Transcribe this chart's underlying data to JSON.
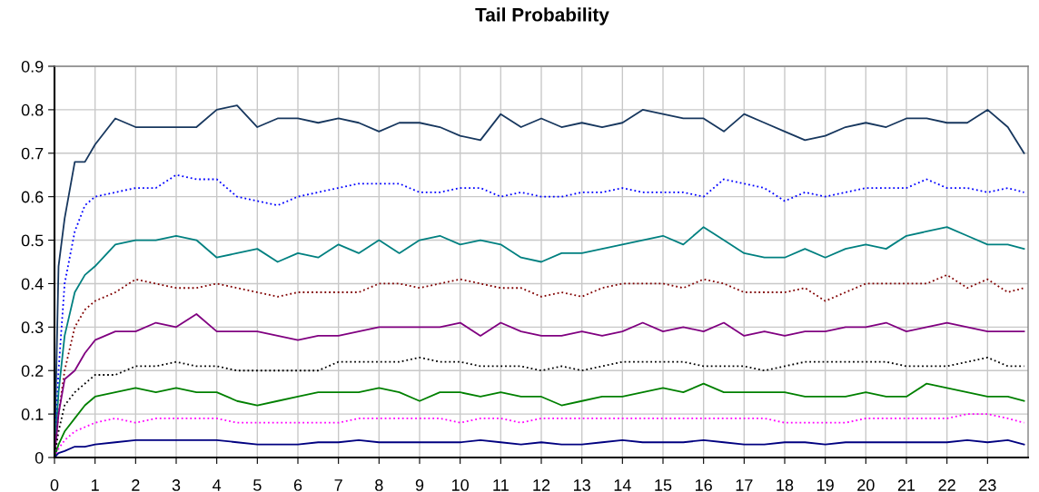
{
  "chart_data": {
    "type": "line",
    "title": "Tail Probability",
    "x": [
      0,
      0.1,
      0.25,
      0.5,
      0.75,
      1,
      1.5,
      2,
      2.5,
      3,
      3.5,
      4,
      4.5,
      5,
      5.5,
      6,
      6.5,
      7,
      7.5,
      8,
      8.5,
      9,
      9.5,
      10,
      10.5,
      11,
      11.5,
      12,
      12.5,
      13,
      13.5,
      14,
      14.5,
      15,
      15.5,
      16,
      16.5,
      17,
      17.5,
      18,
      18.5,
      19,
      19.5,
      20,
      20.5,
      21,
      21.5,
      22,
      22.5,
      23,
      23.5,
      23.9
    ],
    "xlim": [
      0,
      24
    ],
    "xticks": [
      0,
      1,
      2,
      3,
      4,
      5,
      6,
      7,
      8,
      9,
      10,
      11,
      12,
      13,
      14,
      15,
      16,
      17,
      18,
      19,
      20,
      21,
      22,
      23
    ],
    "ylim": [
      0,
      0.9
    ],
    "yticks": [
      0,
      0.1,
      0.2,
      0.3,
      0.4,
      0.5,
      0.6,
      0.7,
      0.8,
      0.9
    ],
    "grid": true,
    "legend": false,
    "series": [
      {
        "color": "#17375e",
        "line_style": "solid",
        "values": [
          0,
          0.44,
          0.55,
          0.68,
          0.68,
          0.72,
          0.78,
          0.76,
          0.76,
          0.76,
          0.76,
          0.8,
          0.81,
          0.76,
          0.78,
          0.78,
          0.77,
          0.78,
          0.77,
          0.75,
          0.77,
          0.77,
          0.76,
          0.74,
          0.73,
          0.79,
          0.76,
          0.78,
          0.76,
          0.77,
          0.76,
          0.77,
          0.8,
          0.79,
          0.78,
          0.78,
          0.75,
          0.79,
          0.77,
          0.75,
          0.73,
          0.74,
          0.76,
          0.77,
          0.76,
          0.78,
          0.78,
          0.77,
          0.77,
          0.8,
          0.76,
          0.7
        ]
      },
      {
        "color": "#0000ff",
        "line_style": "dotted",
        "values": [
          0,
          0.2,
          0.4,
          0.52,
          0.58,
          0.6,
          0.61,
          0.62,
          0.62,
          0.65,
          0.64,
          0.64,
          0.6,
          0.59,
          0.58,
          0.6,
          0.61,
          0.62,
          0.63,
          0.63,
          0.63,
          0.61,
          0.61,
          0.62,
          0.62,
          0.6,
          0.61,
          0.6,
          0.6,
          0.61,
          0.61,
          0.62,
          0.61,
          0.61,
          0.61,
          0.6,
          0.64,
          0.63,
          0.62,
          0.59,
          0.61,
          0.6,
          0.61,
          0.62,
          0.62,
          0.62,
          0.64,
          0.62,
          0.62,
          0.61,
          0.62,
          0.61
        ]
      },
      {
        "color": "#008080",
        "line_style": "solid",
        "values": [
          0,
          0.15,
          0.28,
          0.38,
          0.42,
          0.44,
          0.49,
          0.5,
          0.5,
          0.51,
          0.5,
          0.46,
          0.47,
          0.48,
          0.45,
          0.47,
          0.46,
          0.49,
          0.47,
          0.5,
          0.47,
          0.5,
          0.51,
          0.49,
          0.5,
          0.49,
          0.46,
          0.45,
          0.47,
          0.47,
          0.48,
          0.49,
          0.5,
          0.51,
          0.49,
          0.53,
          0.5,
          0.47,
          0.46,
          0.46,
          0.48,
          0.46,
          0.48,
          0.49,
          0.48,
          0.51,
          0.52,
          0.53,
          0.51,
          0.49,
          0.49,
          0.48
        ]
      },
      {
        "color": "#800000",
        "line_style": "dotted",
        "values": [
          0,
          0.1,
          0.2,
          0.3,
          0.34,
          0.36,
          0.38,
          0.41,
          0.4,
          0.39,
          0.39,
          0.4,
          0.39,
          0.38,
          0.37,
          0.38,
          0.38,
          0.38,
          0.38,
          0.4,
          0.4,
          0.39,
          0.4,
          0.41,
          0.4,
          0.39,
          0.39,
          0.37,
          0.38,
          0.37,
          0.39,
          0.4,
          0.4,
          0.4,
          0.39,
          0.41,
          0.4,
          0.38,
          0.38,
          0.38,
          0.39,
          0.36,
          0.38,
          0.4,
          0.4,
          0.4,
          0.4,
          0.42,
          0.39,
          0.41,
          0.38,
          0.39
        ]
      },
      {
        "color": "#800080",
        "line_style": "solid",
        "values": [
          0,
          0.1,
          0.18,
          0.2,
          0.24,
          0.27,
          0.29,
          0.29,
          0.31,
          0.3,
          0.33,
          0.29,
          0.29,
          0.29,
          0.28,
          0.27,
          0.28,
          0.28,
          0.29,
          0.3,
          0.3,
          0.3,
          0.3,
          0.31,
          0.28,
          0.31,
          0.29,
          0.28,
          0.28,
          0.29,
          0.28,
          0.29,
          0.31,
          0.29,
          0.3,
          0.29,
          0.31,
          0.28,
          0.29,
          0.28,
          0.29,
          0.29,
          0.3,
          0.3,
          0.31,
          0.29,
          0.3,
          0.31,
          0.3,
          0.29,
          0.29,
          0.29
        ]
      },
      {
        "color": "#000000",
        "line_style": "dotted",
        "values": [
          0,
          0.06,
          0.12,
          0.15,
          0.17,
          0.19,
          0.19,
          0.21,
          0.21,
          0.22,
          0.21,
          0.21,
          0.2,
          0.2,
          0.2,
          0.2,
          0.2,
          0.22,
          0.22,
          0.22,
          0.22,
          0.23,
          0.22,
          0.22,
          0.21,
          0.21,
          0.21,
          0.2,
          0.21,
          0.2,
          0.21,
          0.22,
          0.22,
          0.22,
          0.22,
          0.21,
          0.21,
          0.21,
          0.2,
          0.21,
          0.22,
          0.22,
          0.22,
          0.22,
          0.22,
          0.21,
          0.21,
          0.21,
          0.22,
          0.23,
          0.21,
          0.21
        ]
      },
      {
        "color": "#008000",
        "line_style": "solid",
        "values": [
          0,
          0.03,
          0.06,
          0.09,
          0.12,
          0.14,
          0.15,
          0.16,
          0.15,
          0.16,
          0.15,
          0.15,
          0.13,
          0.12,
          0.13,
          0.14,
          0.15,
          0.15,
          0.15,
          0.16,
          0.15,
          0.13,
          0.15,
          0.15,
          0.14,
          0.15,
          0.14,
          0.14,
          0.12,
          0.13,
          0.14,
          0.14,
          0.15,
          0.16,
          0.15,
          0.17,
          0.15,
          0.15,
          0.15,
          0.15,
          0.14,
          0.14,
          0.14,
          0.15,
          0.14,
          0.14,
          0.17,
          0.16,
          0.15,
          0.14,
          0.14,
          0.13
        ]
      },
      {
        "color": "#ff00ff",
        "line_style": "dotted",
        "values": [
          0,
          0.02,
          0.04,
          0.06,
          0.07,
          0.08,
          0.09,
          0.08,
          0.09,
          0.09,
          0.09,
          0.09,
          0.08,
          0.08,
          0.08,
          0.08,
          0.08,
          0.08,
          0.09,
          0.09,
          0.09,
          0.09,
          0.09,
          0.08,
          0.09,
          0.09,
          0.08,
          0.09,
          0.09,
          0.09,
          0.09,
          0.09,
          0.09,
          0.09,
          0.09,
          0.09,
          0.09,
          0.09,
          0.09,
          0.08,
          0.08,
          0.08,
          0.08,
          0.09,
          0.09,
          0.09,
          0.09,
          0.09,
          0.1,
          0.1,
          0.09,
          0.08
        ]
      },
      {
        "color": "#000080",
        "line_style": "solid",
        "values": [
          0,
          0.01,
          0.015,
          0.025,
          0.025,
          0.03,
          0.035,
          0.04,
          0.04,
          0.04,
          0.04,
          0.04,
          0.035,
          0.03,
          0.03,
          0.03,
          0.035,
          0.035,
          0.04,
          0.035,
          0.035,
          0.035,
          0.035,
          0.035,
          0.04,
          0.035,
          0.03,
          0.035,
          0.03,
          0.03,
          0.035,
          0.04,
          0.035,
          0.035,
          0.035,
          0.04,
          0.035,
          0.03,
          0.03,
          0.035,
          0.035,
          0.03,
          0.035,
          0.035,
          0.035,
          0.035,
          0.035,
          0.035,
          0.04,
          0.035,
          0.04,
          0.03
        ]
      }
    ]
  }
}
